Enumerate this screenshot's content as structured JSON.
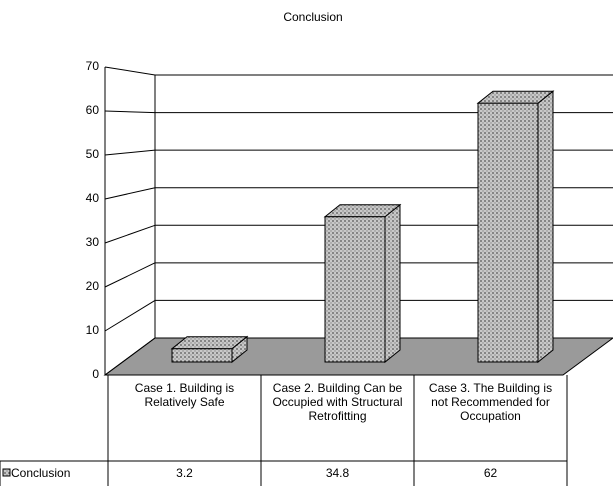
{
  "chart_data": {
    "type": "bar",
    "title": "Conclusion",
    "categories": [
      "Case 1. Building is Relatively Safe",
      "Case 2. Building Can be Occupied with Structural Retrofitting",
      "Case 3. The Building is not Recommended for Occupation"
    ],
    "series": [
      {
        "name": "Conclusion",
        "color": "#b4b4b4",
        "values": [
          3.2,
          34.8,
          62
        ]
      }
    ],
    "ylim": [
      0,
      70
    ],
    "yticks": [
      0,
      10,
      20,
      30,
      40,
      50,
      60,
      70
    ],
    "grid": true
  }
}
